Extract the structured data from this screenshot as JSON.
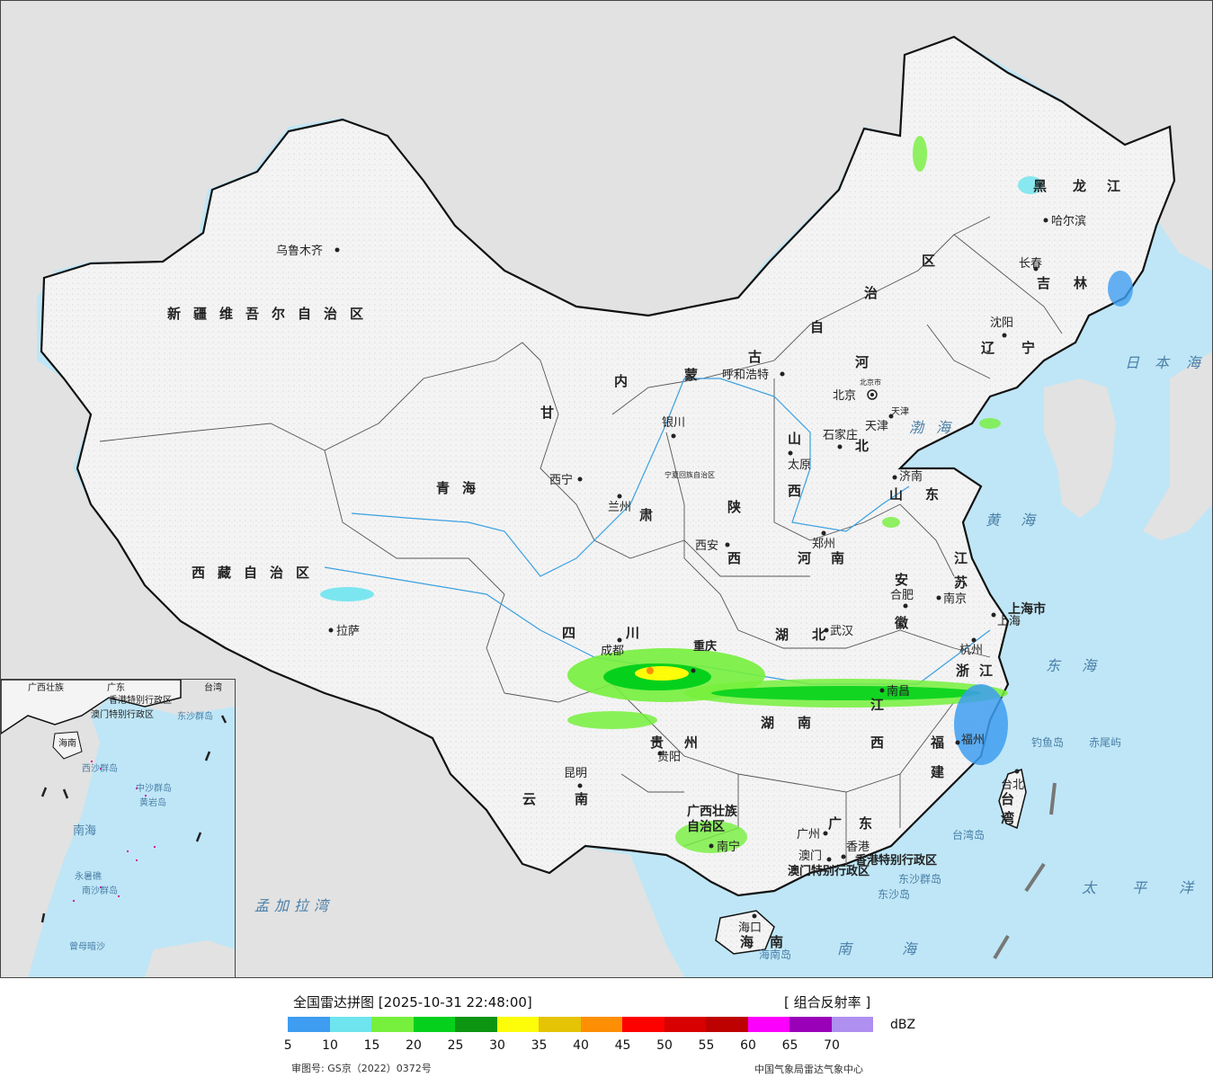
{
  "legend": {
    "title": "全国雷达拼图 [2025-10-31 22:48:00]",
    "product": "[ 组合反射率 ]",
    "unit": "dBZ",
    "ticks": [
      "5",
      "10",
      "15",
      "20",
      "25",
      "30",
      "35",
      "40",
      "45",
      "50",
      "55",
      "60",
      "65",
      "70"
    ],
    "colors": [
      "#3e9df0",
      "#6ee4ee",
      "#76f03c",
      "#05d11d",
      "#0b9510",
      "#fdfc09",
      "#e5c305",
      "#fd8f05",
      "#fd0000",
      "#d80000",
      "#bd0000",
      "#fb00fc",
      "#9900b8",
      "#af8ff0"
    ],
    "review_number": "审图号: GS京（2022）0372号",
    "producer": "中国气象局雷达气象中心"
  },
  "map": {
    "provinces": [
      "新疆维吾尔自治区",
      "西藏自治区",
      "青海",
      "甘",
      "肃",
      "内",
      "蒙",
      "古",
      "自",
      "治",
      "区",
      "黑",
      "龙",
      "江",
      "吉",
      "林",
      "辽",
      "宁",
      "河",
      "北",
      "山",
      "东",
      "山",
      "西",
      "陕",
      "西",
      "河",
      "南",
      "湖",
      "北",
      "四",
      "川",
      "云",
      "南",
      "贵",
      "州",
      "湖",
      "南",
      "江",
      "西",
      "安",
      "徽",
      "江",
      "苏",
      "浙",
      "江",
      "福",
      "建",
      "广",
      "东",
      "台",
      "湾",
      "海",
      "南",
      "广西壮族",
      "自治区",
      "上海市",
      "宁夏回族自治区",
      "香港特别行政区",
      "澳门特别行政区",
      "北京市",
      "天津"
    ],
    "cities": [
      "乌鲁木齐",
      "拉萨",
      "西宁",
      "兰州",
      "银川",
      "呼和浩特",
      "哈尔滨",
      "长春",
      "沈阳",
      "北京",
      "天津",
      "石家庄",
      "太原",
      "济南",
      "郑州",
      "西安",
      "合肥",
      "南京",
      "上海",
      "杭州",
      "武汉",
      "成都",
      "重庆",
      "贵阳",
      "昆明",
      "南昌",
      "福州",
      "台北",
      "广州",
      "香港",
      "澳门",
      "南宁",
      "海口"
    ],
    "seas": [
      "渤",
      "海",
      "黄",
      "海",
      "东",
      "海",
      "南",
      "海",
      "太",
      "平",
      "洋",
      "日",
      "本",
      "海",
      "孟加拉湾"
    ],
    "islands": [
      "台湾岛",
      "钓鱼岛",
      "赤尾屿",
      "东沙群岛",
      "东沙岛",
      "海南岛"
    ],
    "inset_labels": [
      "广西壮族",
      "广东",
      "台湾",
      "澳门特别行政区",
      "香港特别行政区",
      "东沙群岛",
      "海南",
      "西沙群岛",
      "中沙群岛",
      "黄岩岛",
      "南海",
      "永暑礁",
      "南沙群岛",
      "曾母暗沙"
    ]
  }
}
